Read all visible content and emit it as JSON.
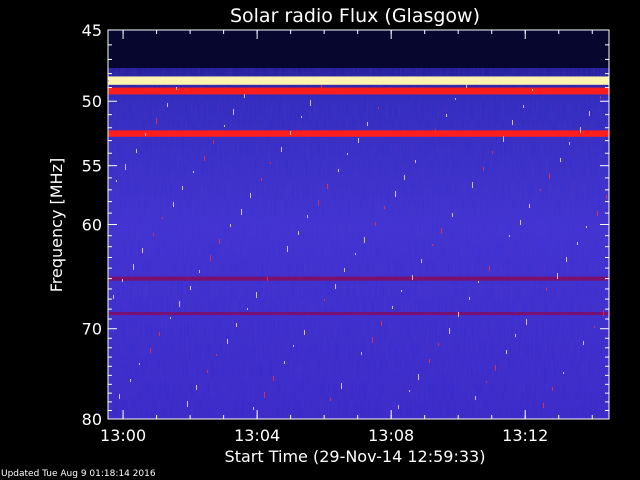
{
  "chart_data": {
    "type": "heatmap",
    "title": "Solar radio Flux (Glasgow)",
    "xlabel": "Start Time (29-Nov-14 12:59:33)",
    "ylabel": "Frequency [MHz]",
    "x_ticks": [
      "13:00",
      "13:04",
      "13:08",
      "13:12"
    ],
    "y_ticks": [
      45,
      50,
      55,
      60,
      70,
      80
    ],
    "x_range": [
      "12:59:33",
      "13:14:30"
    ],
    "y_range": [
      45,
      80
    ],
    "y_scale": "log",
    "y_inverted": true,
    "colormap": [
      "#00000a",
      "#0a0a7a",
      "#3a2fd8",
      "#8a1060",
      "#ff1a1a",
      "#fff6c0"
    ],
    "bands": [
      {
        "freq_start": 45,
        "freq_end": 47.6,
        "level": "dark"
      },
      {
        "freq_start": 48.2,
        "freq_end": 48.8,
        "level": "saturated"
      },
      {
        "freq_start": 49.0,
        "freq_end": 49.5,
        "level": "high"
      },
      {
        "freq_start": 52.2,
        "freq_end": 52.7,
        "level": "high"
      },
      {
        "freq_start": 64.8,
        "freq_end": 65.2,
        "level": "medium"
      },
      {
        "freq_start": 68.3,
        "freq_end": 68.6,
        "level": "medium"
      }
    ],
    "annotations": []
  },
  "footer": {
    "updated_text": "Updated Tue Aug  9 01:18:14 2016"
  }
}
